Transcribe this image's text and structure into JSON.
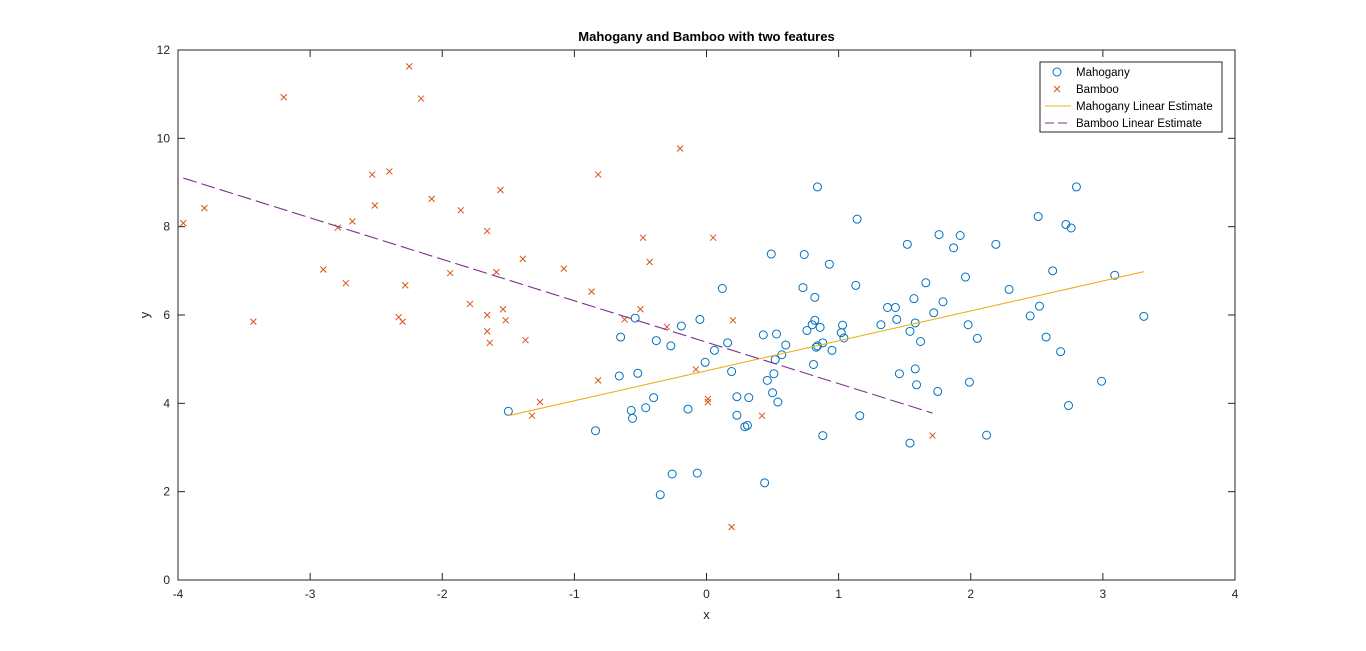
{
  "chart_data": {
    "type": "scatter",
    "title": "Mahogany and Bamboo with two features",
    "xlabel": "x",
    "ylabel": "y",
    "xlim": [
      -4,
      4
    ],
    "ylim": [
      0,
      12
    ],
    "xticks": [
      -4,
      -3,
      -2,
      -1,
      0,
      1,
      2,
      3,
      4
    ],
    "yticks": [
      0,
      2,
      4,
      6,
      8,
      10,
      12
    ],
    "grid": false,
    "legend_position": "top-right",
    "series": [
      {
        "name": "Mahogany",
        "kind": "scatter",
        "marker": "circle",
        "color": "#0072BD",
        "points": [
          [
            -1.5,
            3.82
          ],
          [
            -0.84,
            3.38
          ],
          [
            -0.66,
            4.62
          ],
          [
            -0.65,
            5.5
          ],
          [
            -0.57,
            3.84
          ],
          [
            -0.56,
            3.66
          ],
          [
            -0.54,
            5.93
          ],
          [
            -0.52,
            4.68
          ],
          [
            -0.46,
            3.9
          ],
          [
            -0.4,
            4.13
          ],
          [
            -0.38,
            5.42
          ],
          [
            -0.35,
            1.93
          ],
          [
            -0.27,
            5.3
          ],
          [
            -0.26,
            2.4
          ],
          [
            -0.19,
            5.75
          ],
          [
            -0.14,
            3.87
          ],
          [
            -0.07,
            2.42
          ],
          [
            -0.05,
            5.9
          ],
          [
            -0.01,
            4.93
          ],
          [
            0.06,
            5.2
          ],
          [
            0.12,
            6.6
          ],
          [
            0.16,
            5.37
          ],
          [
            0.19,
            4.72
          ],
          [
            0.23,
            4.15
          ],
          [
            0.23,
            3.73
          ],
          [
            0.29,
            3.47
          ],
          [
            0.31,
            3.5
          ],
          [
            0.32,
            4.13
          ],
          [
            0.43,
            5.55
          ],
          [
            0.44,
            2.2
          ],
          [
            0.46,
            4.52
          ],
          [
            0.49,
            7.38
          ],
          [
            0.5,
            4.24
          ],
          [
            0.51,
            4.67
          ],
          [
            0.52,
            4.99
          ],
          [
            0.53,
            5.57
          ],
          [
            0.54,
            4.03
          ],
          [
            0.57,
            5.1
          ],
          [
            0.6,
            5.32
          ],
          [
            0.73,
            6.62
          ],
          [
            0.74,
            7.37
          ],
          [
            0.76,
            5.65
          ],
          [
            0.8,
            5.78
          ],
          [
            0.81,
            4.88
          ],
          [
            0.82,
            5.88
          ],
          [
            0.82,
            6.4
          ],
          [
            0.83,
            5.27
          ],
          [
            0.84,
            5.3
          ],
          [
            0.84,
            8.9
          ],
          [
            0.86,
            5.72
          ],
          [
            0.88,
            5.37
          ],
          [
            0.88,
            3.27
          ],
          [
            0.93,
            7.15
          ],
          [
            0.95,
            5.2
          ],
          [
            1.02,
            5.6
          ],
          [
            1.03,
            5.77
          ],
          [
            1.04,
            5.48
          ],
          [
            1.13,
            6.67
          ],
          [
            1.14,
            8.17
          ],
          [
            1.16,
            3.72
          ],
          [
            1.32,
            5.78
          ],
          [
            1.37,
            6.17
          ],
          [
            1.43,
            6.17
          ],
          [
            1.44,
            5.9
          ],
          [
            1.46,
            4.67
          ],
          [
            1.52,
            7.6
          ],
          [
            1.54,
            5.63
          ],
          [
            1.54,
            3.1
          ],
          [
            1.57,
            6.37
          ],
          [
            1.58,
            5.82
          ],
          [
            1.58,
            4.78
          ],
          [
            1.59,
            4.42
          ],
          [
            1.62,
            5.4
          ],
          [
            1.66,
            6.73
          ],
          [
            1.72,
            6.05
          ],
          [
            1.75,
            4.27
          ],
          [
            1.76,
            7.82
          ],
          [
            1.79,
            6.3
          ],
          [
            1.87,
            7.52
          ],
          [
            1.92,
            7.8
          ],
          [
            1.96,
            6.86
          ],
          [
            1.98,
            5.78
          ],
          [
            1.99,
            4.48
          ],
          [
            2.05,
            5.47
          ],
          [
            2.12,
            3.28
          ],
          [
            2.19,
            7.6
          ],
          [
            2.29,
            6.58
          ],
          [
            2.45,
            5.98
          ],
          [
            2.51,
            8.23
          ],
          [
            2.52,
            6.2
          ],
          [
            2.57,
            5.5
          ],
          [
            2.62,
            7.0
          ],
          [
            2.68,
            5.17
          ],
          [
            2.72,
            8.05
          ],
          [
            2.74,
            3.95
          ],
          [
            2.76,
            7.97
          ],
          [
            2.8,
            8.9
          ],
          [
            2.99,
            4.5
          ],
          [
            3.09,
            6.9
          ],
          [
            3.31,
            5.97
          ]
        ]
      },
      {
        "name": "Bamboo",
        "kind": "scatter",
        "marker": "x",
        "color": "#D95319",
        "points": [
          [
            -3.96,
            8.08
          ],
          [
            -3.8,
            8.42
          ],
          [
            -3.43,
            5.85
          ],
          [
            -3.2,
            10.93
          ],
          [
            -2.9,
            7.03
          ],
          [
            -2.79,
            7.98
          ],
          [
            -2.73,
            6.72
          ],
          [
            -2.68,
            8.12
          ],
          [
            -2.53,
            9.18
          ],
          [
            -2.51,
            8.48
          ],
          [
            -2.4,
            9.25
          ],
          [
            -2.33,
            5.95
          ],
          [
            -2.3,
            5.85
          ],
          [
            -2.28,
            6.67
          ],
          [
            -2.25,
            11.63
          ],
          [
            -2.16,
            10.9
          ],
          [
            -2.08,
            8.63
          ],
          [
            -1.94,
            6.95
          ],
          [
            -1.86,
            8.37
          ],
          [
            -1.79,
            6.25
          ],
          [
            -1.66,
            7.9
          ],
          [
            -1.66,
            5.63
          ],
          [
            -1.66,
            6.0
          ],
          [
            -1.64,
            5.37
          ],
          [
            -1.59,
            6.97
          ],
          [
            -1.56,
            8.83
          ],
          [
            -1.54,
            6.13
          ],
          [
            -1.52,
            5.88
          ],
          [
            -1.39,
            7.27
          ],
          [
            -1.37,
            5.43
          ],
          [
            -1.32,
            3.72
          ],
          [
            -1.26,
            4.03
          ],
          [
            -1.08,
            7.05
          ],
          [
            -0.87,
            6.53
          ],
          [
            -0.82,
            9.18
          ],
          [
            -0.82,
            4.52
          ],
          [
            -0.62,
            5.9
          ],
          [
            -0.5,
            6.13
          ],
          [
            -0.48,
            7.75
          ],
          [
            -0.43,
            7.2
          ],
          [
            -0.3,
            5.73
          ],
          [
            -0.2,
            9.77
          ],
          [
            -0.08,
            4.77
          ],
          [
            0.01,
            4.1
          ],
          [
            0.01,
            4.03
          ],
          [
            0.05,
            7.75
          ],
          [
            0.19,
            1.2
          ],
          [
            0.2,
            5.88
          ],
          [
            0.42,
            3.72
          ],
          [
            1.71,
            3.27
          ]
        ]
      },
      {
        "name": "Mahogany Linear Estimate",
        "kind": "line",
        "style": "solid",
        "color": "#EDB120",
        "points": [
          [
            -1.5,
            3.72
          ],
          [
            3.31,
            6.98
          ]
        ]
      },
      {
        "name": "Bamboo Linear Estimate",
        "kind": "line",
        "style": "dashed",
        "color": "#7E2F8E",
        "points": [
          [
            -3.96,
            9.1
          ],
          [
            1.71,
            3.78
          ]
        ]
      }
    ]
  }
}
